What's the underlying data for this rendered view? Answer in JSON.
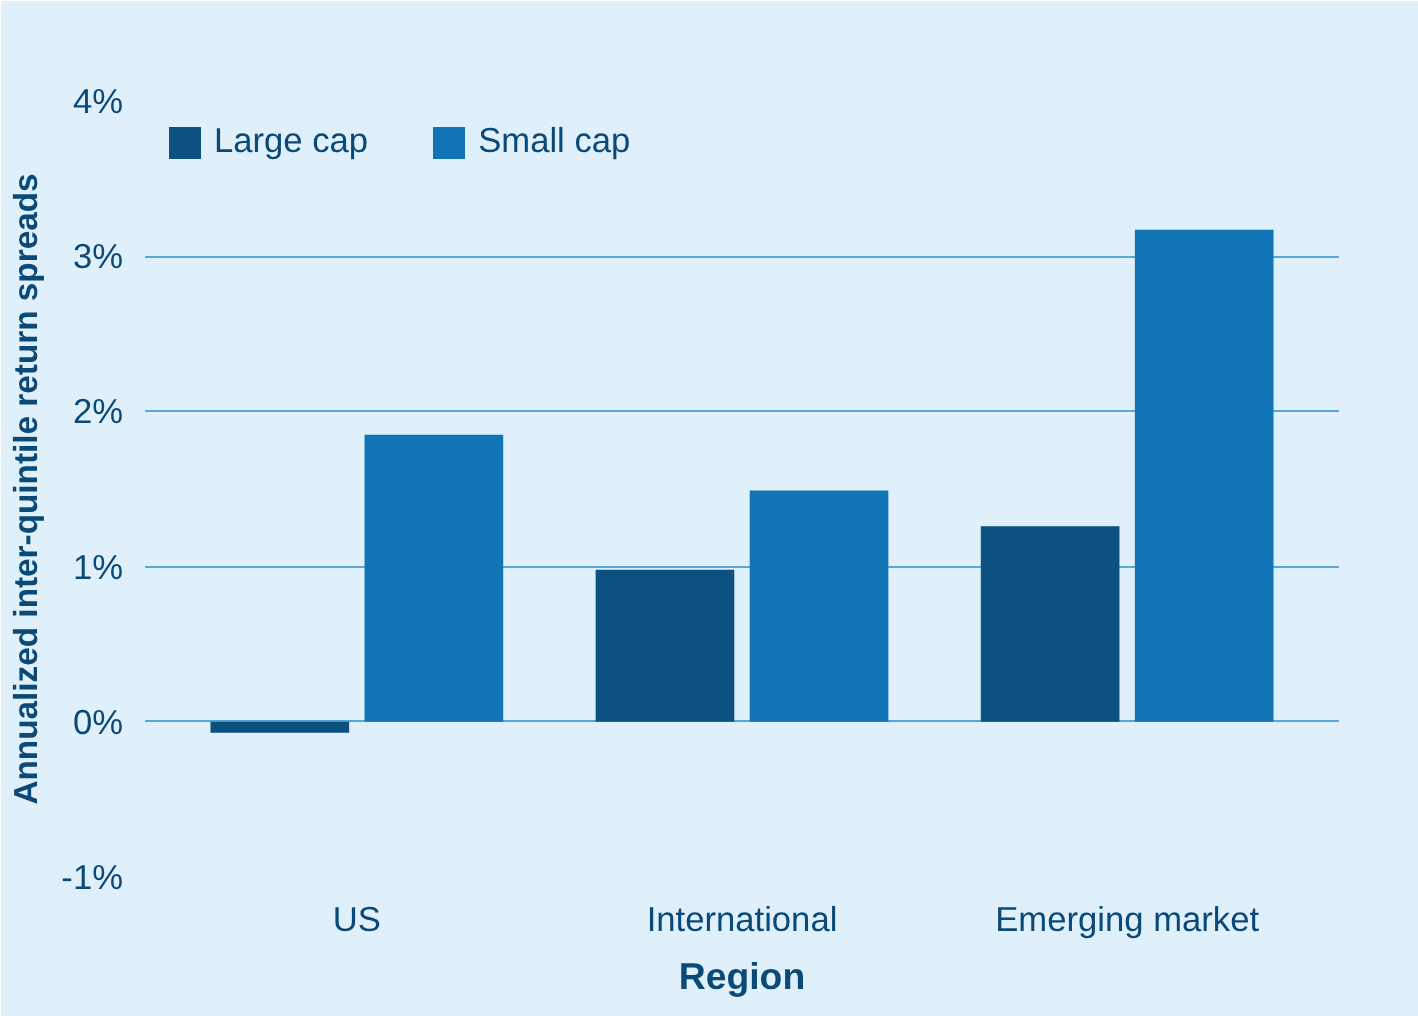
{
  "chart_data": {
    "type": "bar",
    "xlabel": "Region",
    "ylabel": "Annualized inter-quintile return spreads",
    "categories": [
      "US",
      "International",
      "Emerging market"
    ],
    "series": [
      {
        "name": "Large cap",
        "color": "#0b5280",
        "values": [
          -0.07,
          0.98,
          1.26
        ]
      },
      {
        "name": "Small cap",
        "color": "#1174b5",
        "values": [
          1.85,
          1.49,
          3.17
        ]
      }
    ],
    "ylim": [
      -1,
      4
    ],
    "yticks": [
      {
        "value": -1,
        "label": "-1%"
      },
      {
        "value": 0,
        "label": "0%"
      },
      {
        "value": 1,
        "label": "1%"
      },
      {
        "value": 2,
        "label": "2%"
      },
      {
        "value": 3,
        "label": "3%"
      },
      {
        "value": 4,
        "label": "4%"
      }
    ],
    "grid": "y",
    "legend": "top left"
  }
}
